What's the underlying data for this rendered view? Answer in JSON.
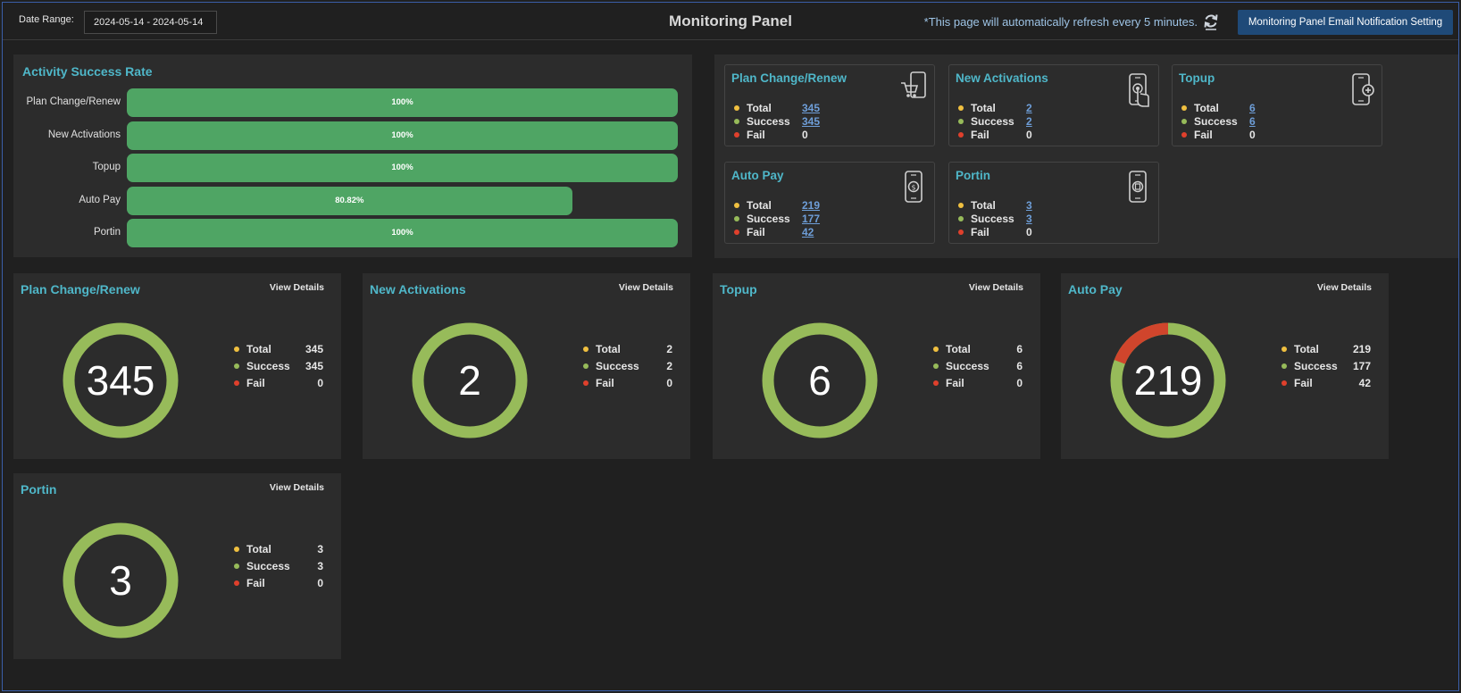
{
  "header": {
    "date_label": "Date Range:",
    "date_value": "2024-05-14 - 2024-05-14",
    "title": "Monitoring Panel",
    "refresh_note": "*This page will automatically refresh every 5 minutes.",
    "email_button": "Monitoring Panel Email Notification Setting"
  },
  "colors": {
    "accent_title": "#4fb7c9",
    "bar_green": "#4fa564",
    "donut_success": "#97bb5a",
    "donut_fail": "#d0452c",
    "dot_total": "#f0c040",
    "dot_success": "#97bb5a",
    "dot_fail": "#e0402c",
    "button_bg": "#1f4a78"
  },
  "success_rate": {
    "title": "Activity Success Rate",
    "bars": [
      {
        "label": "Plan Change/Renew",
        "percent": 100,
        "text": "100%"
      },
      {
        "label": "New Activations",
        "percent": 100,
        "text": "100%"
      },
      {
        "label": "Topup",
        "percent": 100,
        "text": "100%"
      },
      {
        "label": "Auto Pay",
        "percent": 80.82,
        "text": "80.82%"
      },
      {
        "label": "Portin",
        "percent": 100,
        "text": "100%"
      }
    ]
  },
  "stat_labels": {
    "total": "Total",
    "success": "Success",
    "fail": "Fail"
  },
  "summary_cards": [
    {
      "title": "Plan Change/Renew",
      "icon": "phone-cart-icon",
      "total": "345",
      "success": "345",
      "fail": "0"
    },
    {
      "title": "New Activations",
      "icon": "phone-touch-icon",
      "total": "2",
      "success": "2",
      "fail": "0"
    },
    {
      "title": "Topup",
      "icon": "phone-plus-icon",
      "total": "6",
      "success": "6",
      "fail": "0"
    },
    {
      "title": "Auto Pay",
      "icon": "phone-dollar-icon",
      "total": "219",
      "success": "177",
      "fail": "42"
    },
    {
      "title": "Portin",
      "icon": "phone-port-icon",
      "total": "3",
      "success": "3",
      "fail": "0"
    }
  ],
  "view_details_label": "View Details",
  "donut_cards": [
    {
      "title": "Plan Change/Renew",
      "total": 345,
      "success": 345,
      "fail": 0
    },
    {
      "title": "New Activations",
      "total": 2,
      "success": 2,
      "fail": 0
    },
    {
      "title": "Topup",
      "total": 6,
      "success": 6,
      "fail": 0
    },
    {
      "title": "Auto Pay",
      "total": 219,
      "success": 177,
      "fail": 42
    },
    {
      "title": "Portin",
      "total": 3,
      "success": 3,
      "fail": 0
    }
  ]
}
